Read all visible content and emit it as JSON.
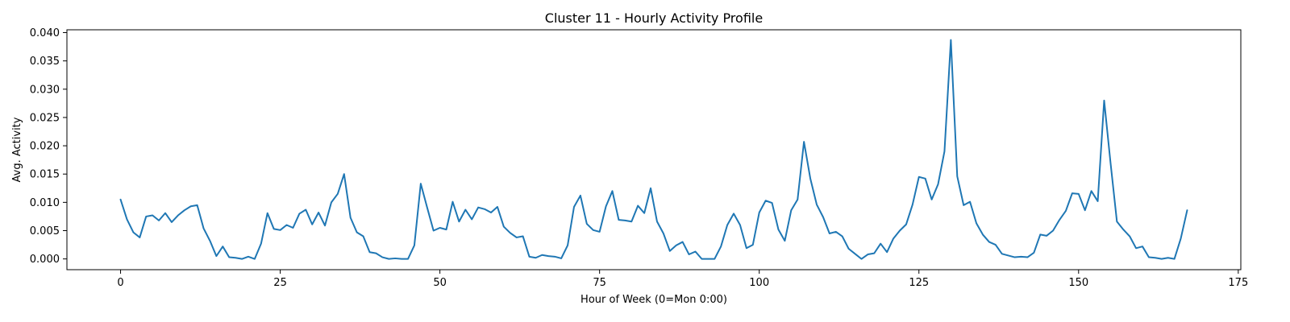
{
  "chart_data": {
    "type": "line",
    "title": "Cluster 11 - Hourly Activity Profile",
    "xlabel": "Hour of Week (0=Mon 0:00)",
    "ylabel": "Avg. Activity",
    "xlim": [
      -8.4,
      175.4
    ],
    "ylim": [
      -0.0019,
      0.0405
    ],
    "x_ticks": [
      0,
      25,
      50,
      75,
      100,
      125,
      150,
      175
    ],
    "x_tick_labels": [
      "0",
      "25",
      "50",
      "75",
      "100",
      "125",
      "150",
      "175"
    ],
    "y_ticks": [
      0.0,
      0.005,
      0.01,
      0.015,
      0.02,
      0.025,
      0.03,
      0.035,
      0.04
    ],
    "y_tick_labels": [
      "0.000",
      "0.005",
      "0.010",
      "0.015",
      "0.020",
      "0.025",
      "0.030",
      "0.035",
      "0.040"
    ],
    "grid": false,
    "legend": null,
    "line_color": "#1f77b4",
    "series": [
      {
        "x_start": 0,
        "x_step": 1,
        "values": [
          0.0105,
          0.007,
          0.0047,
          0.0038,
          0.0075,
          0.0077,
          0.0068,
          0.0081,
          0.0065,
          0.0077,
          0.0086,
          0.0093,
          0.0095,
          0.0054,
          0.0032,
          0.0005,
          0.0022,
          0.0003,
          0.0002,
          0.0,
          0.0004,
          0.0,
          0.0027,
          0.0081,
          0.0053,
          0.0051,
          0.006,
          0.0055,
          0.008,
          0.0087,
          0.0061,
          0.0082,
          0.0059,
          0.01,
          0.0115,
          0.015,
          0.0073,
          0.0047,
          0.004,
          0.0012,
          0.001,
          0.0003,
          0.0,
          0.0001,
          0.0,
          0.0,
          0.0024,
          0.0133,
          0.0091,
          0.005,
          0.0055,
          0.0052,
          0.0101,
          0.0066,
          0.0087,
          0.007,
          0.0091,
          0.0088,
          0.0082,
          0.0092,
          0.0057,
          0.0046,
          0.0038,
          0.004,
          0.0004,
          0.0002,
          0.0007,
          0.0005,
          0.0004,
          0.0001,
          0.0024,
          0.0092,
          0.0112,
          0.0062,
          0.0051,
          0.0048,
          0.0093,
          0.012,
          0.0069,
          0.0068,
          0.0066,
          0.0094,
          0.0081,
          0.0125,
          0.0066,
          0.0045,
          0.0014,
          0.0024,
          0.003,
          0.0008,
          0.0013,
          0.0,
          0.0,
          0.0,
          0.0022,
          0.006,
          0.008,
          0.006,
          0.0019,
          0.0025,
          0.0082,
          0.0103,
          0.0099,
          0.0052,
          0.0032,
          0.0086,
          0.0105,
          0.0207,
          0.0142,
          0.0096,
          0.0074,
          0.0045,
          0.0048,
          0.004,
          0.0018,
          0.0009,
          0.0,
          0.0008,
          0.001,
          0.0027,
          0.0012,
          0.0036,
          0.005,
          0.0061,
          0.0096,
          0.0145,
          0.0142,
          0.0105,
          0.0132,
          0.019,
          0.0387,
          0.0146,
          0.0095,
          0.0101,
          0.0063,
          0.0043,
          0.003,
          0.0025,
          0.0009,
          0.0006,
          0.0003,
          0.0004,
          0.0003,
          0.0011,
          0.0043,
          0.0041,
          0.005,
          0.0069,
          0.0085,
          0.0116,
          0.0115,
          0.0086,
          0.012,
          0.0102,
          0.028,
          0.017,
          0.0066,
          0.0052,
          0.004,
          0.0019,
          0.0022,
          0.0003,
          0.0002,
          0.0,
          0.0002,
          0.0,
          0.0036,
          0.0086
        ]
      }
    ]
  }
}
